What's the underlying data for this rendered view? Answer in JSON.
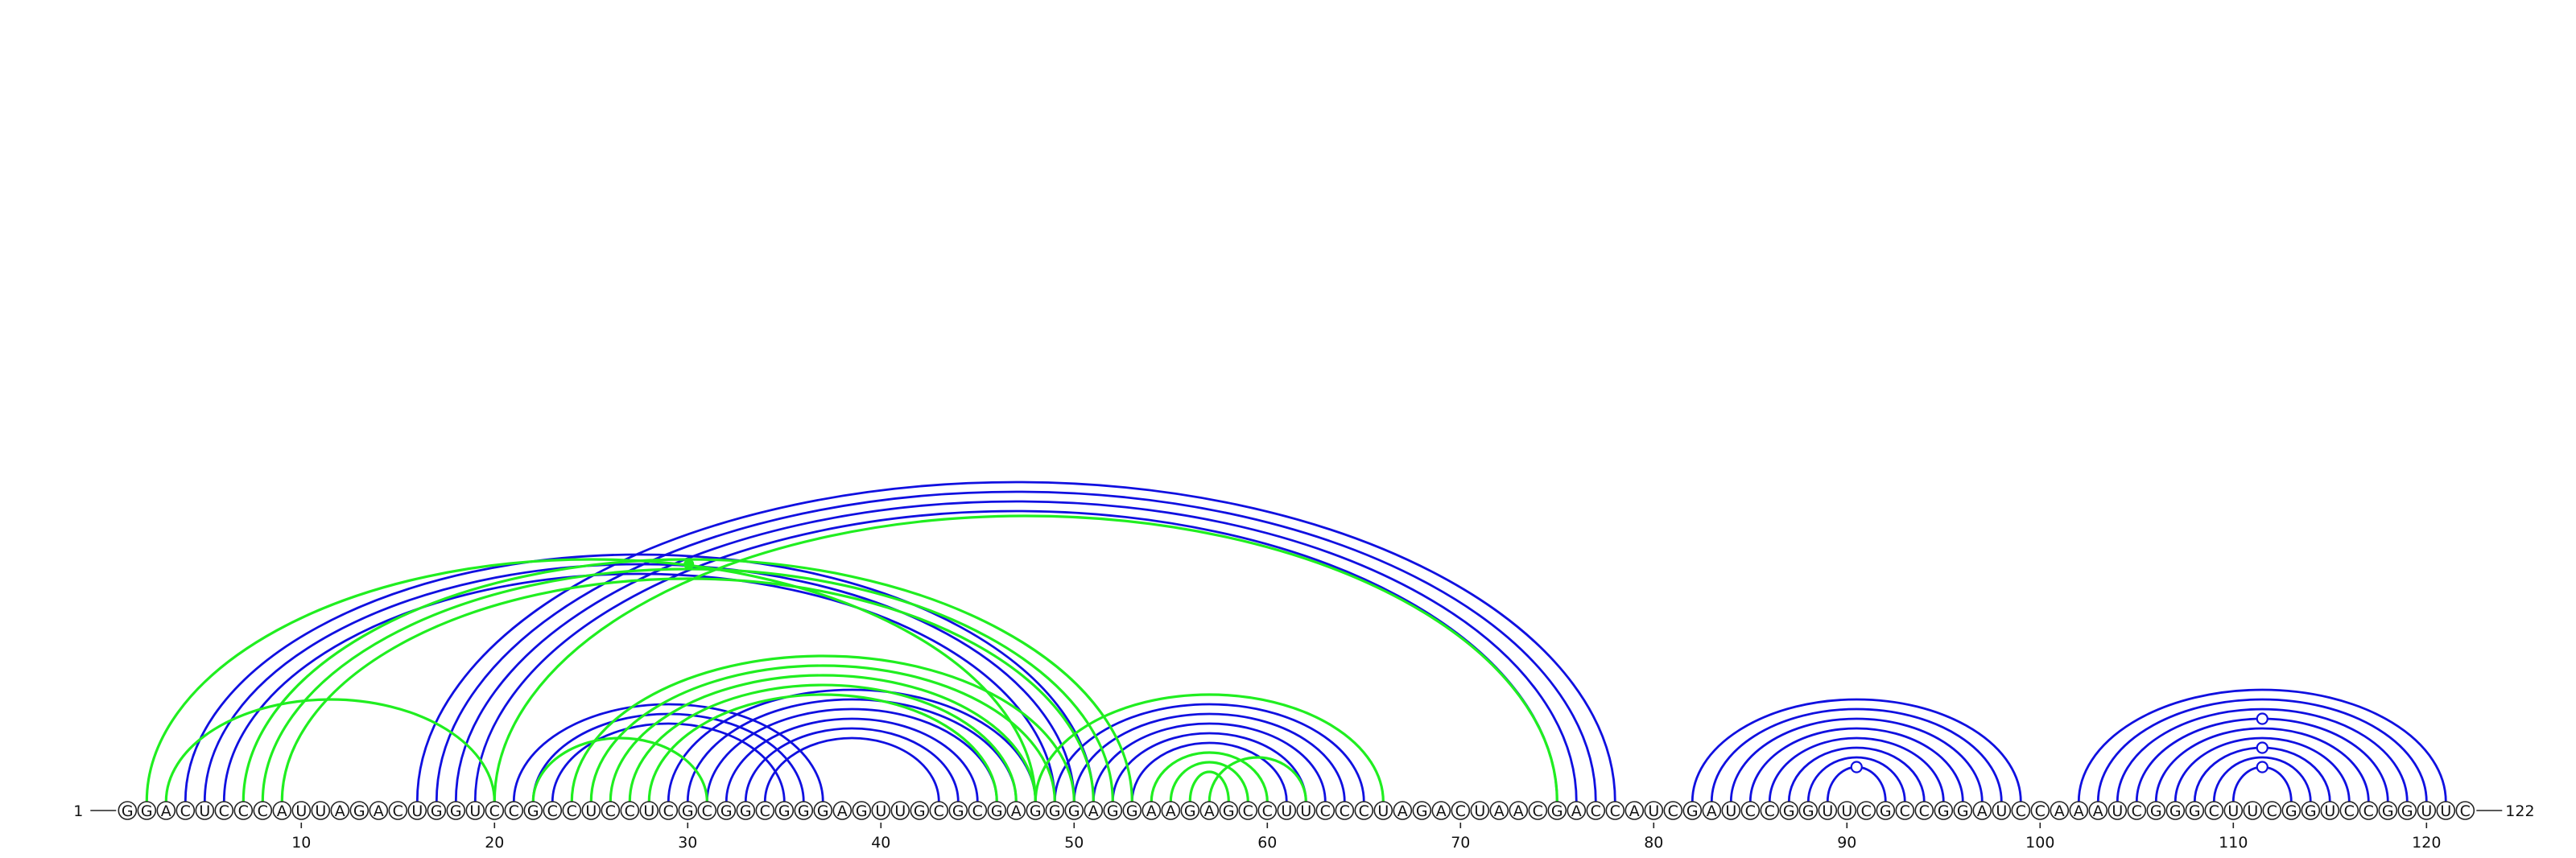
{
  "sequence": "GGACUCCCAUUAGACUGGUCCGCCUCCUCGCGGCGGGAGUUGCGCGAGGGAGGAAGAGCCUUCCCUAGACUAACGACCAUCGAUCCGGUUCGCCGGAUCCAAAUCGGGCUUCGGUCCGGUUC",
  "start_label": "1",
  "end_label": "122",
  "tick_positions": [
    10,
    20,
    30,
    40,
    50,
    60,
    70,
    80,
    90,
    100,
    110,
    120
  ],
  "colors": {
    "structure_a": "#1010e0",
    "structure_b": "#20ee20",
    "node_outline": "#222222",
    "background": "#ffffff"
  },
  "structure_a_pairs": [
    [
      4,
      51
    ],
    [
      5,
      50
    ],
    [
      6,
      49
    ],
    [
      16,
      78
    ],
    [
      17,
      77
    ],
    [
      18,
      76
    ],
    [
      19,
      75
    ],
    [
      21,
      37
    ],
    [
      22,
      36
    ],
    [
      23,
      35
    ],
    [
      29,
      48
    ],
    [
      30,
      47
    ],
    [
      31,
      46
    ],
    [
      32,
      45
    ],
    [
      33,
      44
    ],
    [
      34,
      43
    ],
    [
      49,
      65
    ],
    [
      50,
      64
    ],
    [
      51,
      63
    ],
    [
      52,
      62
    ],
    [
      53,
      61
    ],
    [
      82,
      99
    ],
    [
      83,
      98
    ],
    [
      84,
      97
    ],
    [
      85,
      96
    ],
    [
      86,
      95
    ],
    [
      87,
      94
    ],
    [
      88,
      93
    ],
    [
      89,
      92
    ],
    [
      102,
      121
    ],
    [
      103,
      120
    ],
    [
      104,
      119
    ],
    [
      105,
      118
    ],
    [
      106,
      117
    ],
    [
      107,
      116
    ],
    [
      108,
      115
    ],
    [
      109,
      114
    ],
    [
      110,
      113
    ]
  ],
  "structure_b_pairs": [
    [
      2,
      48
    ],
    [
      7,
      53
    ],
    [
      8,
      52
    ],
    [
      9,
      51
    ],
    [
      3,
      20
    ],
    [
      20,
      75
    ],
    [
      22,
      31
    ],
    [
      24,
      50
    ],
    [
      25,
      49
    ],
    [
      26,
      48
    ],
    [
      27,
      47
    ],
    [
      28,
      46
    ],
    [
      54,
      60
    ],
    [
      55,
      59
    ],
    [
      56,
      58
    ],
    [
      57,
      62
    ],
    [
      48,
      66
    ]
  ],
  "open_markers": [
    {
      "pair": [
        89,
        92
      ]
    },
    {
      "pair": [
        110,
        113
      ]
    },
    {
      "pair": [
        108,
        115
      ]
    },
    {
      "pair": [
        105,
        118
      ]
    }
  ],
  "filled_markers": [
    {
      "pair": [
        2,
        48
      ]
    }
  ]
}
